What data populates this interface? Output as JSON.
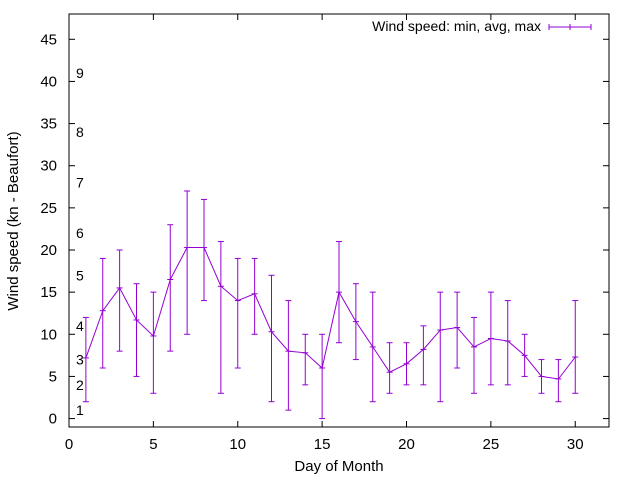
{
  "chart_data": {
    "type": "line",
    "title": "",
    "xlabel": "Day of Month",
    "ylabel": "Wind speed (kn - Beaufort)",
    "xlim": [
      0,
      32
    ],
    "ylim": [
      -1,
      48
    ],
    "xticks": [
      0,
      5,
      10,
      15,
      20,
      25,
      30
    ],
    "yticks": [
      0,
      5,
      10,
      15,
      20,
      25,
      30,
      35,
      40,
      45
    ],
    "grid": false,
    "legend_position": "top-right",
    "series": [
      {
        "name": "Wind speed: min, avg, max",
        "color": "#9400d3",
        "style": "line with error bars",
        "x": [
          1,
          2,
          3,
          4,
          5,
          6,
          7,
          8,
          9,
          10,
          11,
          12,
          13,
          14,
          15,
          16,
          17,
          18,
          19,
          20,
          21,
          22,
          23,
          24,
          25,
          26,
          27,
          28,
          29,
          30
        ],
        "avg": [
          7.2,
          12.8,
          15.5,
          11.7,
          9.8,
          16.5,
          20.3,
          20.3,
          15.7,
          14,
          14.8,
          10.3,
          8,
          7.8,
          6,
          15,
          11.5,
          8.5,
          5.5,
          6.5,
          8.2,
          10.5,
          10.8,
          8.5,
          9.5,
          9.2,
          7.5,
          5,
          4.7,
          7.3
        ],
        "min": [
          2,
          6,
          8,
          5,
          3,
          8,
          10,
          14,
          3,
          6,
          10,
          2,
          1,
          4,
          0,
          9,
          7,
          2,
          3,
          4,
          4,
          2,
          6,
          3,
          4,
          4,
          5,
          3,
          2,
          3
        ],
        "max": [
          12,
          19,
          20,
          16,
          15,
          23,
          27,
          26,
          21,
          19,
          19,
          17,
          14,
          10,
          10,
          21,
          16,
          15,
          9,
          9,
          11,
          15,
          15,
          12,
          15,
          14,
          10,
          7,
          7,
          14
        ]
      }
    ],
    "beaufort_labels": [
      {
        "label": "1",
        "y": 1
      },
      {
        "label": "2",
        "y": 4
      },
      {
        "label": "3",
        "y": 7
      },
      {
        "label": "4",
        "y": 11
      },
      {
        "label": "5",
        "y": 17
      },
      {
        "label": "6",
        "y": 22
      },
      {
        "label": "7",
        "y": 28
      },
      {
        "label": "8",
        "y": 34
      },
      {
        "label": "9",
        "y": 41
      }
    ]
  }
}
